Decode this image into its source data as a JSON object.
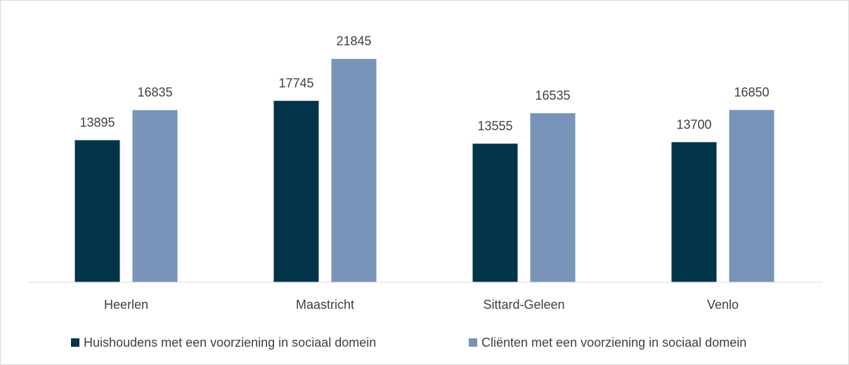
{
  "chart_data": {
    "type": "bar",
    "categories": [
      "Heerlen",
      "Maastricht",
      "Sittard-Geleen",
      "Venlo"
    ],
    "series": [
      {
        "name": "Huishoudens met een voorziening in sociaal domein",
        "color": "#02344a",
        "values": [
          13895,
          17745,
          13555,
          13700
        ]
      },
      {
        "name": "Cliënten met een voorziening in sociaal domein",
        "color": "#7894b9",
        "values": [
          16835,
          21845,
          16535,
          16850
        ]
      }
    ],
    "ylim": [
      0,
      25000
    ]
  }
}
